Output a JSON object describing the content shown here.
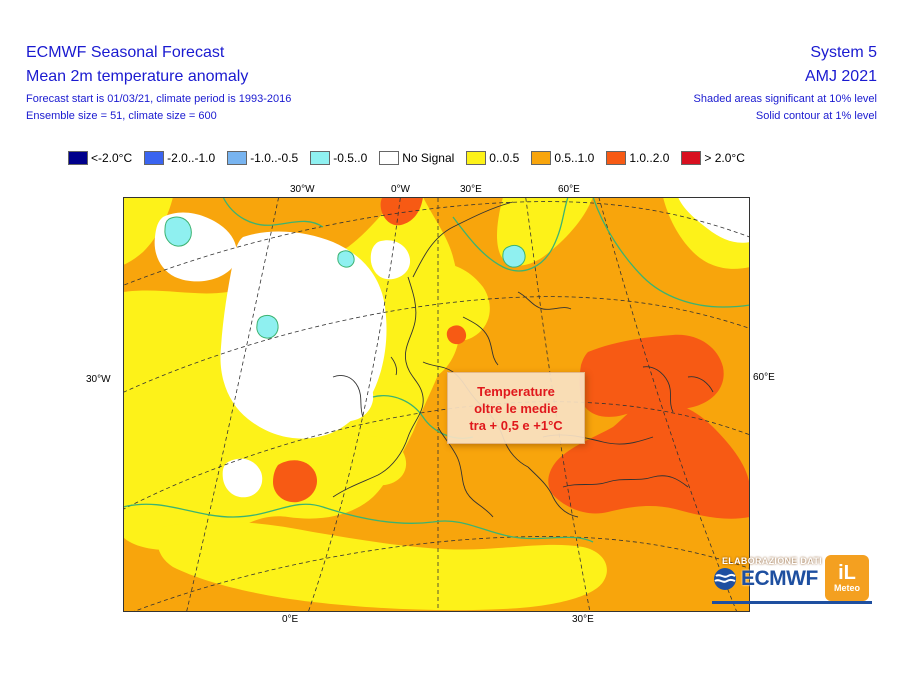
{
  "header": {
    "title": "ECMWF Seasonal Forecast",
    "subtitle": "Mean 2m temperature anomaly",
    "forecast_info": "Forecast start is 01/03/21, climate period is 1993-2016",
    "ensemble_info": "Ensemble size = 51, climate size = 600",
    "system": "System 5",
    "period": "AMJ 2021",
    "significance_shaded": "Shaded areas significant at 10% level",
    "significance_contour": "Solid contour at 1% level"
  },
  "legend": [
    {
      "label": "<-2.0°C",
      "color": "#00008b"
    },
    {
      "label": "-2.0..-1.0",
      "color": "#3a64f0"
    },
    {
      "label": "-1.0..-0.5",
      "color": "#78b4f0"
    },
    {
      "label": "-0.5..0",
      "color": "#8ff0f0"
    },
    {
      "label": "No Signal",
      "color": "#ffffff"
    },
    {
      "label": "0..0.5",
      "color": "#fdf219"
    },
    {
      "label": "0.5..1.0",
      "color": "#f8a50c"
    },
    {
      "label": "1.0..2.0",
      "color": "#f75a14"
    },
    {
      "label": "> 2.0°C",
      "color": "#d81020"
    }
  ],
  "axes": {
    "top": [
      "30°W",
      "0°W",
      "30°E",
      "60°E"
    ],
    "bottom": [
      "0°E",
      "30°E"
    ],
    "left": "30°W",
    "right": "60°E"
  },
  "callout": {
    "line1": "Temperature",
    "line2": "oltre le medie",
    "line3": "tra + 0,5 e +1°C"
  },
  "branding": {
    "elaborazione": "ELABORAZIONE DATI",
    "ecmwf": "ECMWF",
    "ilmeteo_mark": "iL",
    "ilmeteo_word": "Meteo"
  },
  "map_colors": {
    "none": "#ffffff",
    "slight_warm": "#fdf219",
    "warm": "#f8a50c",
    "very_warm": "#f75a14",
    "cold_slight": "#8ff0f0",
    "land_line": "#333333",
    "grid_line": "#333333",
    "sig_contour": "#3cb371"
  }
}
